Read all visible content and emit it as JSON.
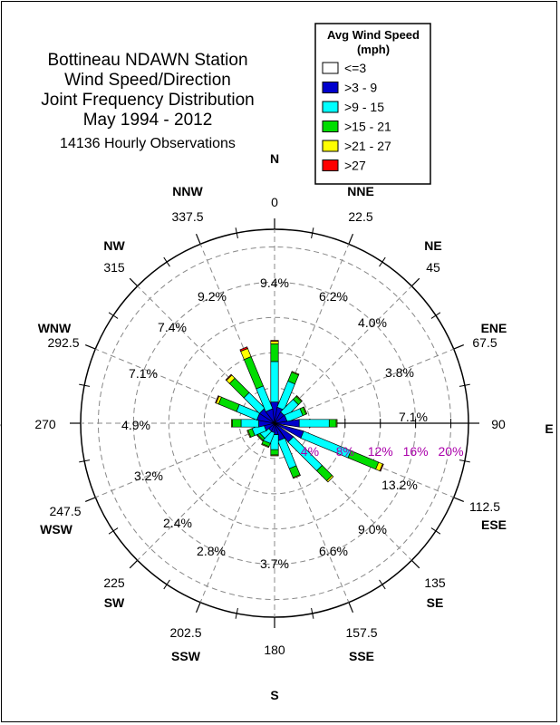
{
  "chart_data": {
    "type": "wind-rose",
    "title_lines": [
      "Bottineau NDAWN Station",
      "Wind Speed/Direction",
      "Joint Frequency Distribution",
      "May 1994 - 2012"
    ],
    "subtitle": "14136 Hourly Observations",
    "legend": {
      "title_lines": [
        "Avg Wind Speed",
        "(mph)"
      ],
      "placement": "top-right",
      "entries": [
        {
          "label": "<=3",
          "color": "#ffffff"
        },
        {
          "label": ">3 - 9",
          "color": "#0000cc"
        },
        {
          "label": ">9 - 15",
          "color": "#00ffff"
        },
        {
          "label": ">15 - 21",
          "color": "#00dd00"
        },
        {
          "label": ">21 - 27",
          "color": "#ffff00"
        },
        {
          "label": ">27",
          "color": "#ff0000"
        }
      ]
    },
    "radial_axis": {
      "max": 22,
      "ticks": [
        4,
        8,
        12,
        16,
        20
      ],
      "tick_labels": [
        "4%",
        "8%",
        "12%",
        "16%",
        "20%"
      ],
      "label_color": "#aa00aa"
    },
    "directions": [
      {
        "abbr": "N",
        "deg": "0",
        "pct": "9.4%"
      },
      {
        "abbr": "NNE",
        "deg": "22.5",
        "pct": "6.2%"
      },
      {
        "abbr": "NE",
        "deg": "45",
        "pct": "4.0%"
      },
      {
        "abbr": "ENE",
        "deg": "67.5",
        "pct": "3.8%"
      },
      {
        "abbr": "E",
        "deg": "90",
        "pct": "7.1%"
      },
      {
        "abbr": "ESE",
        "deg": "112.5",
        "pct": "13.2%"
      },
      {
        "abbr": "SE",
        "deg": "135",
        "pct": "9.0%"
      },
      {
        "abbr": "SSE",
        "deg": "157.5",
        "pct": "6.6%"
      },
      {
        "abbr": "S",
        "deg": "180",
        "pct": "3.7%"
      },
      {
        "abbr": "SSW",
        "deg": "202.5",
        "pct": "2.8%"
      },
      {
        "abbr": "SW",
        "deg": "225",
        "pct": "2.4%"
      },
      {
        "abbr": "WSW",
        "deg": "247.5",
        "pct": "3.2%"
      },
      {
        "abbr": "W",
        "deg": "270",
        "pct": "4.9%"
      },
      {
        "abbr": "WNW",
        "deg": "292.5",
        "pct": "7.1%"
      },
      {
        "abbr": "NW",
        "deg": "315",
        "pct": "7.4%"
      },
      {
        "abbr": "NNW",
        "deg": "337.5",
        "pct": "9.2%"
      }
    ],
    "series": [
      {
        "name": "<=3",
        "values": [
          0.0,
          0.0,
          0.0,
          0.0,
          0.0,
          0.0,
          0.0,
          0.0,
          0.0,
          0.0,
          0.0,
          0.0,
          0.0,
          0.0,
          0.0,
          0.0
        ]
      },
      {
        "name": ">3 - 9",
        "values": [
          2.4,
          1.8,
          1.4,
          1.4,
          2.8,
          3.4,
          2.6,
          2.0,
          1.3,
          1.0,
          0.9,
          1.2,
          1.8,
          2.0,
          2.0,
          1.6
        ]
      },
      {
        "name": ">9 - 15",
        "values": [
          4.6,
          3.2,
          2.0,
          1.9,
          3.4,
          5.8,
          4.6,
          3.4,
          1.7,
          1.3,
          1.1,
          1.4,
          2.0,
          2.5,
          2.5,
          2.8
        ]
      },
      {
        "name": ">15 - 21",
        "values": [
          2.0,
          1.1,
          0.5,
          0.4,
          0.8,
          3.4,
          1.6,
          1.1,
          0.6,
          0.4,
          0.3,
          0.5,
          1.0,
          2.2,
          2.3,
          3.6
        ]
      },
      {
        "name": ">21 - 27",
        "values": [
          0.3,
          0.1,
          0.1,
          0.1,
          0.1,
          0.5,
          0.2,
          0.1,
          0.1,
          0.1,
          0.1,
          0.1,
          0.1,
          0.3,
          0.5,
          1.0
        ]
      },
      {
        "name": ">27",
        "values": [
          0.1,
          0.0,
          0.0,
          0.0,
          0.0,
          0.1,
          0.0,
          0.0,
          0.0,
          0.0,
          0.0,
          0.0,
          0.0,
          0.1,
          0.1,
          0.2
        ]
      }
    ]
  }
}
